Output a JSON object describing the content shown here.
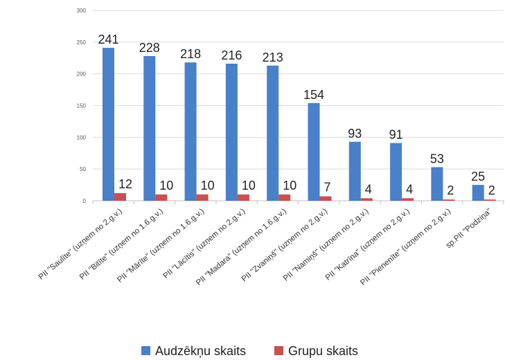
{
  "chart_data": {
    "type": "bar",
    "categories": [
      "PII \"Saulīte\" (uzņem no 2.g.v.)",
      "PII \"Bitīte\" (uzņem no 1.6.g.v.)",
      "PII \"Mārīte\" (uzņem no 1.6.g.v.)",
      "PII \"Lācītis\" (uzņem no 2.g.v.)",
      "PII \"Madara\" (uzņem no 1.6.g.v.)",
      "PII \"Zvaniņš\" (uzņem no 2.g.v.)",
      "PII \"Namiņš\" (uzņem no 2.g.v.)",
      "PII \"Katrīna\" (uzņem no 2.g.v.)",
      "PII \"Pienenīte\" (uzņem no 2.g.v.)",
      "sp.PII \"Podziņa\""
    ],
    "series": [
      {
        "name": "Audzēkņu skaits",
        "color": "#4a7fc9",
        "values": [
          241,
          228,
          218,
          216,
          213,
          154,
          93,
          91,
          53,
          25
        ]
      },
      {
        "name": "Grupu skaits",
        "color": "#c9504f",
        "values": [
          12,
          10,
          10,
          10,
          10,
          7,
          4,
          4,
          2,
          2
        ]
      }
    ],
    "ylim": [
      0,
      300
    ],
    "yticks": [
      0,
      50,
      100,
      150,
      200,
      250,
      300
    ],
    "grid": true,
    "legend_position": "bottom"
  }
}
